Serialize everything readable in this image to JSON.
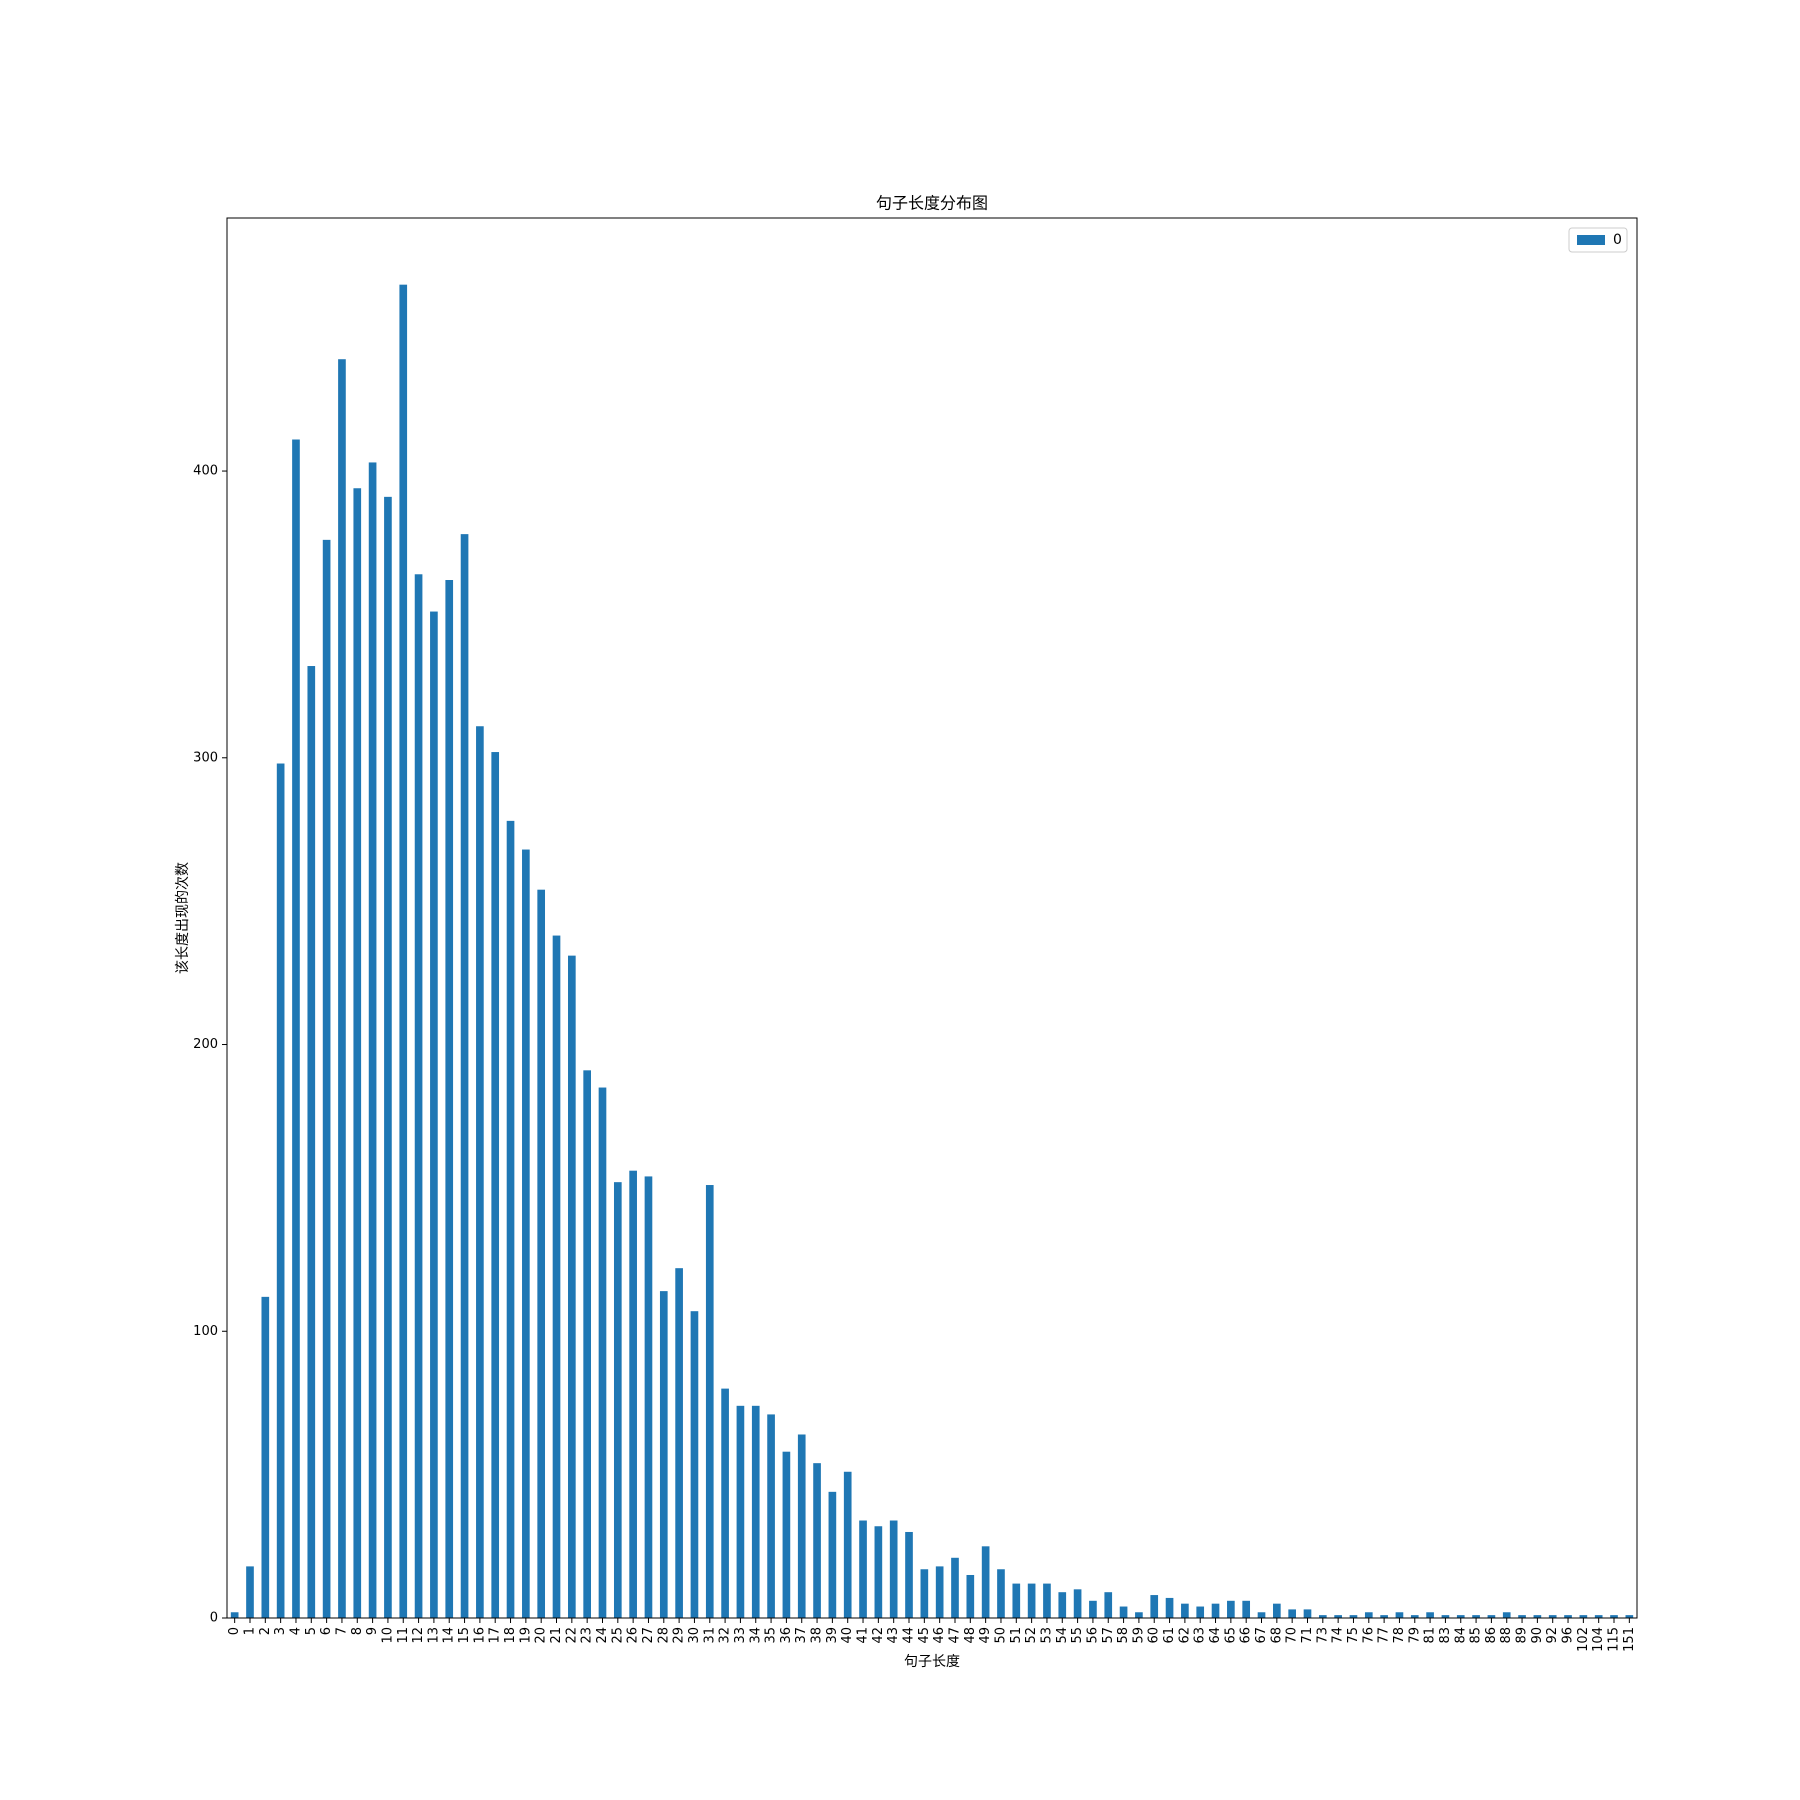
{
  "chart_data": {
    "type": "bar",
    "title": "句子长度分布图",
    "x_label": "句子长度",
    "y_label": "该长度出现的次数",
    "categories": [
      "0",
      "1",
      "2",
      "3",
      "4",
      "5",
      "6",
      "7",
      "8",
      "9",
      "10",
      "11",
      "12",
      "13",
      "14",
      "15",
      "16",
      "17",
      "18",
      "19",
      "20",
      "21",
      "22",
      "23",
      "24",
      "25",
      "26",
      "27",
      "28",
      "29",
      "30",
      "31",
      "32",
      "33",
      "34",
      "35",
      "36",
      "37",
      "38",
      "39",
      "40",
      "41",
      "42",
      "43",
      "44",
      "45",
      "46",
      "47",
      "48",
      "49",
      "50",
      "51",
      "52",
      "53",
      "54",
      "55",
      "56",
      "57",
      "58",
      "59",
      "60",
      "61",
      "62",
      "63",
      "64",
      "65",
      "66",
      "67",
      "68",
      "70",
      "71",
      "73",
      "74",
      "75",
      "76",
      "77",
      "78",
      "79",
      "81",
      "83",
      "84",
      "85",
      "86",
      "88",
      "89",
      "90",
      "92",
      "96",
      "102",
      "104",
      "115",
      "151"
    ],
    "series": [
      {
        "name": "0",
        "color": "#1f77b4",
        "values": [
          2,
          18,
          112,
          298,
          411,
          332,
          376,
          439,
          394,
          403,
          391,
          465,
          364,
          351,
          362,
          378,
          311,
          302,
          278,
          268,
          254,
          238,
          231,
          191,
          185,
          152,
          156,
          154,
          114,
          122,
          107,
          151,
          80,
          74,
          74,
          71,
          58,
          64,
          54,
          44,
          51,
          34,
          32,
          34,
          30,
          17,
          18,
          21,
          15,
          25,
          17,
          12,
          12,
          12,
          9,
          10,
          6,
          9,
          4,
          2,
          8,
          7,
          5,
          4,
          5,
          6,
          6,
          2,
          5,
          3,
          3,
          1,
          1,
          1,
          2,
          1,
          2,
          1,
          2,
          1,
          1,
          1,
          1,
          2,
          1,
          1,
          1,
          1,
          1,
          1,
          1,
          1
        ]
      }
    ],
    "ylim": [
      0,
      488.25
    ],
    "yticks": [
      0,
      100,
      200,
      300,
      400
    ],
    "grid": false,
    "legend": "upper right"
  }
}
